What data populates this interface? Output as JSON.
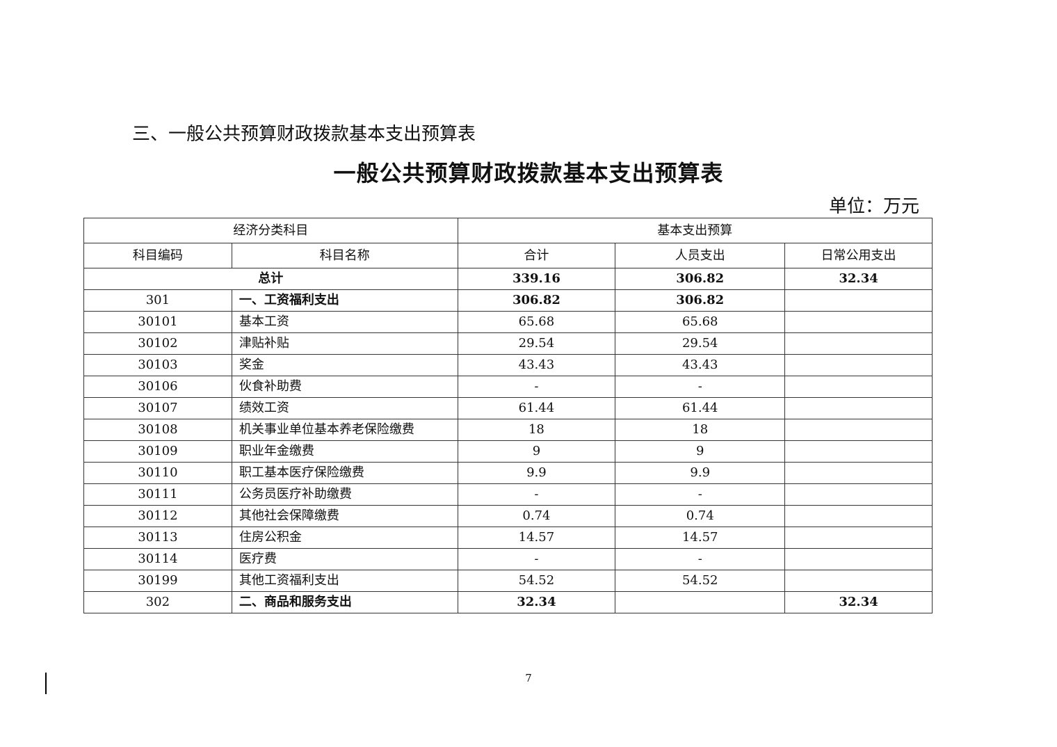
{
  "heading": "三、一般公共预算财政拨款基本支出预算表",
  "title": "一般公共预算财政拨款基本支出预算表",
  "unit": "单位：万元",
  "table": {
    "group_headers": [
      "经济分类科目",
      "基本支出预算"
    ],
    "columns": [
      "科目编码",
      "科目名称",
      "合计",
      "人员支出",
      "日常公用支出"
    ],
    "total": {
      "label": "总计",
      "total": "339.16",
      "personnel": "306.82",
      "public": "32.34"
    },
    "rows": [
      {
        "code": "301",
        "name": "一、工资福利支出",
        "total": "306.82",
        "personnel": "306.82",
        "public": "",
        "bold": true
      },
      {
        "code": "30101",
        "name": "基本工资",
        "total": "65.68",
        "personnel": "65.68",
        "public": ""
      },
      {
        "code": "30102",
        "name": "津贴补贴",
        "total": "29.54",
        "personnel": "29.54",
        "public": ""
      },
      {
        "code": "30103",
        "name": "奖金",
        "total": "43.43",
        "personnel": "43.43",
        "public": ""
      },
      {
        "code": "30106",
        "name": "伙食补助费",
        "total": "-",
        "personnel": "-",
        "public": ""
      },
      {
        "code": "30107",
        "name": "绩效工资",
        "total": "61.44",
        "personnel": "61.44",
        "public": ""
      },
      {
        "code": "30108",
        "name": "机关事业单位基本养老保险缴费",
        "total": "18",
        "personnel": "18",
        "public": ""
      },
      {
        "code": "30109",
        "name": "职业年金缴费",
        "total": "9",
        "personnel": "9",
        "public": ""
      },
      {
        "code": "30110",
        "name": "职工基本医疗保险缴费",
        "total": "9.9",
        "personnel": "9.9",
        "public": ""
      },
      {
        "code": "30111",
        "name": "公务员医疗补助缴费",
        "total": "-",
        "personnel": "-",
        "public": ""
      },
      {
        "code": "30112",
        "name": "其他社会保障缴费",
        "total": "0.74",
        "personnel": "0.74",
        "public": ""
      },
      {
        "code": "30113",
        "name": "住房公积金",
        "total": "14.57",
        "personnel": "14.57",
        "public": ""
      },
      {
        "code": "30114",
        "name": "医疗费",
        "total": "-",
        "personnel": "-",
        "public": ""
      },
      {
        "code": "30199",
        "name": "其他工资福利支出",
        "total": "54.52",
        "personnel": "54.52",
        "public": ""
      },
      {
        "code": "302",
        "name": "二、商品和服务支出",
        "total": "32.34",
        "personnel": "",
        "public": "32.34",
        "bold": true
      }
    ]
  },
  "page_number": "7"
}
